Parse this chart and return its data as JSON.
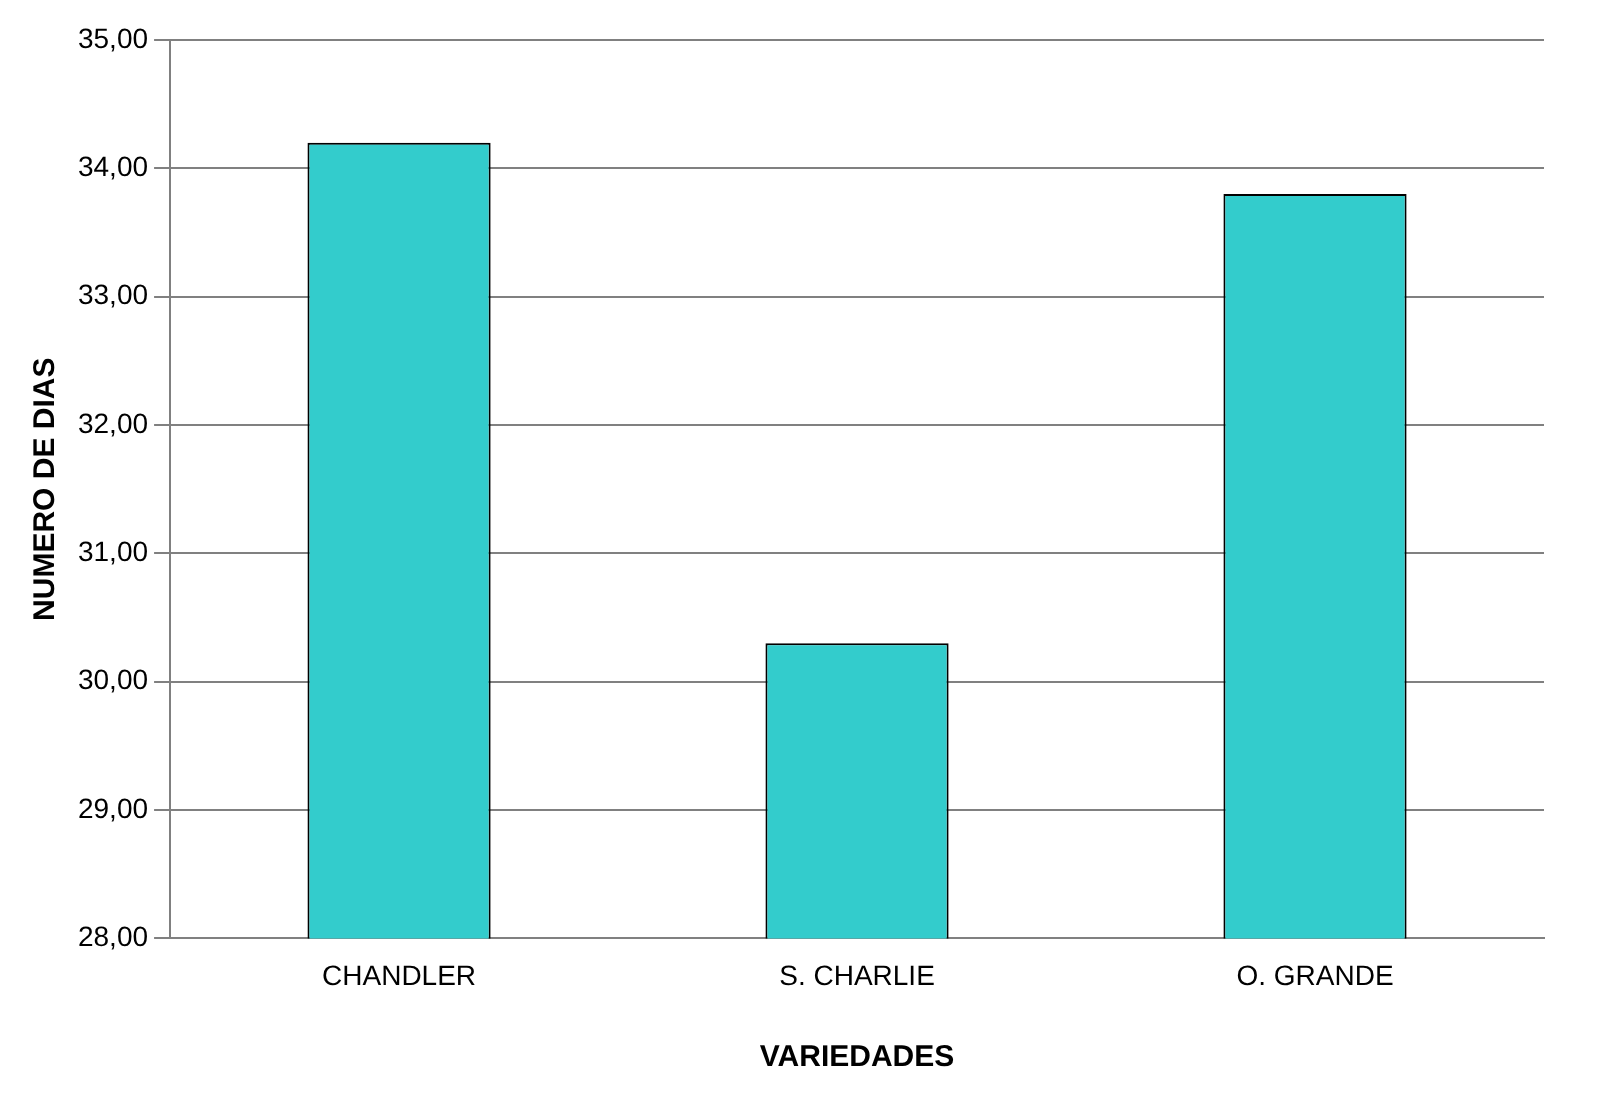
{
  "chart_data": {
    "type": "bar",
    "xlabel": "VARIEDADES",
    "ylabel": "NUMERO DE DIAS",
    "categories": [
      "CHANDLER",
      "S. CHARLIE",
      "O. GRANDE"
    ],
    "values": [
      34.2,
      30.3,
      33.8
    ],
    "color": "#33cccc",
    "ylim": [
      28,
      35
    ],
    "yticks": [
      {
        "value": 28,
        "label": "28,00"
      },
      {
        "value": 29,
        "label": "29,00"
      },
      {
        "value": 30,
        "label": "30,00"
      },
      {
        "value": 31,
        "label": "31,00"
      },
      {
        "value": 32,
        "label": "32,00"
      },
      {
        "value": 33,
        "label": "33,00"
      },
      {
        "value": 34,
        "label": "34,00"
      },
      {
        "value": 35,
        "label": "35,00"
      }
    ],
    "grid": "y",
    "legend": false
  }
}
